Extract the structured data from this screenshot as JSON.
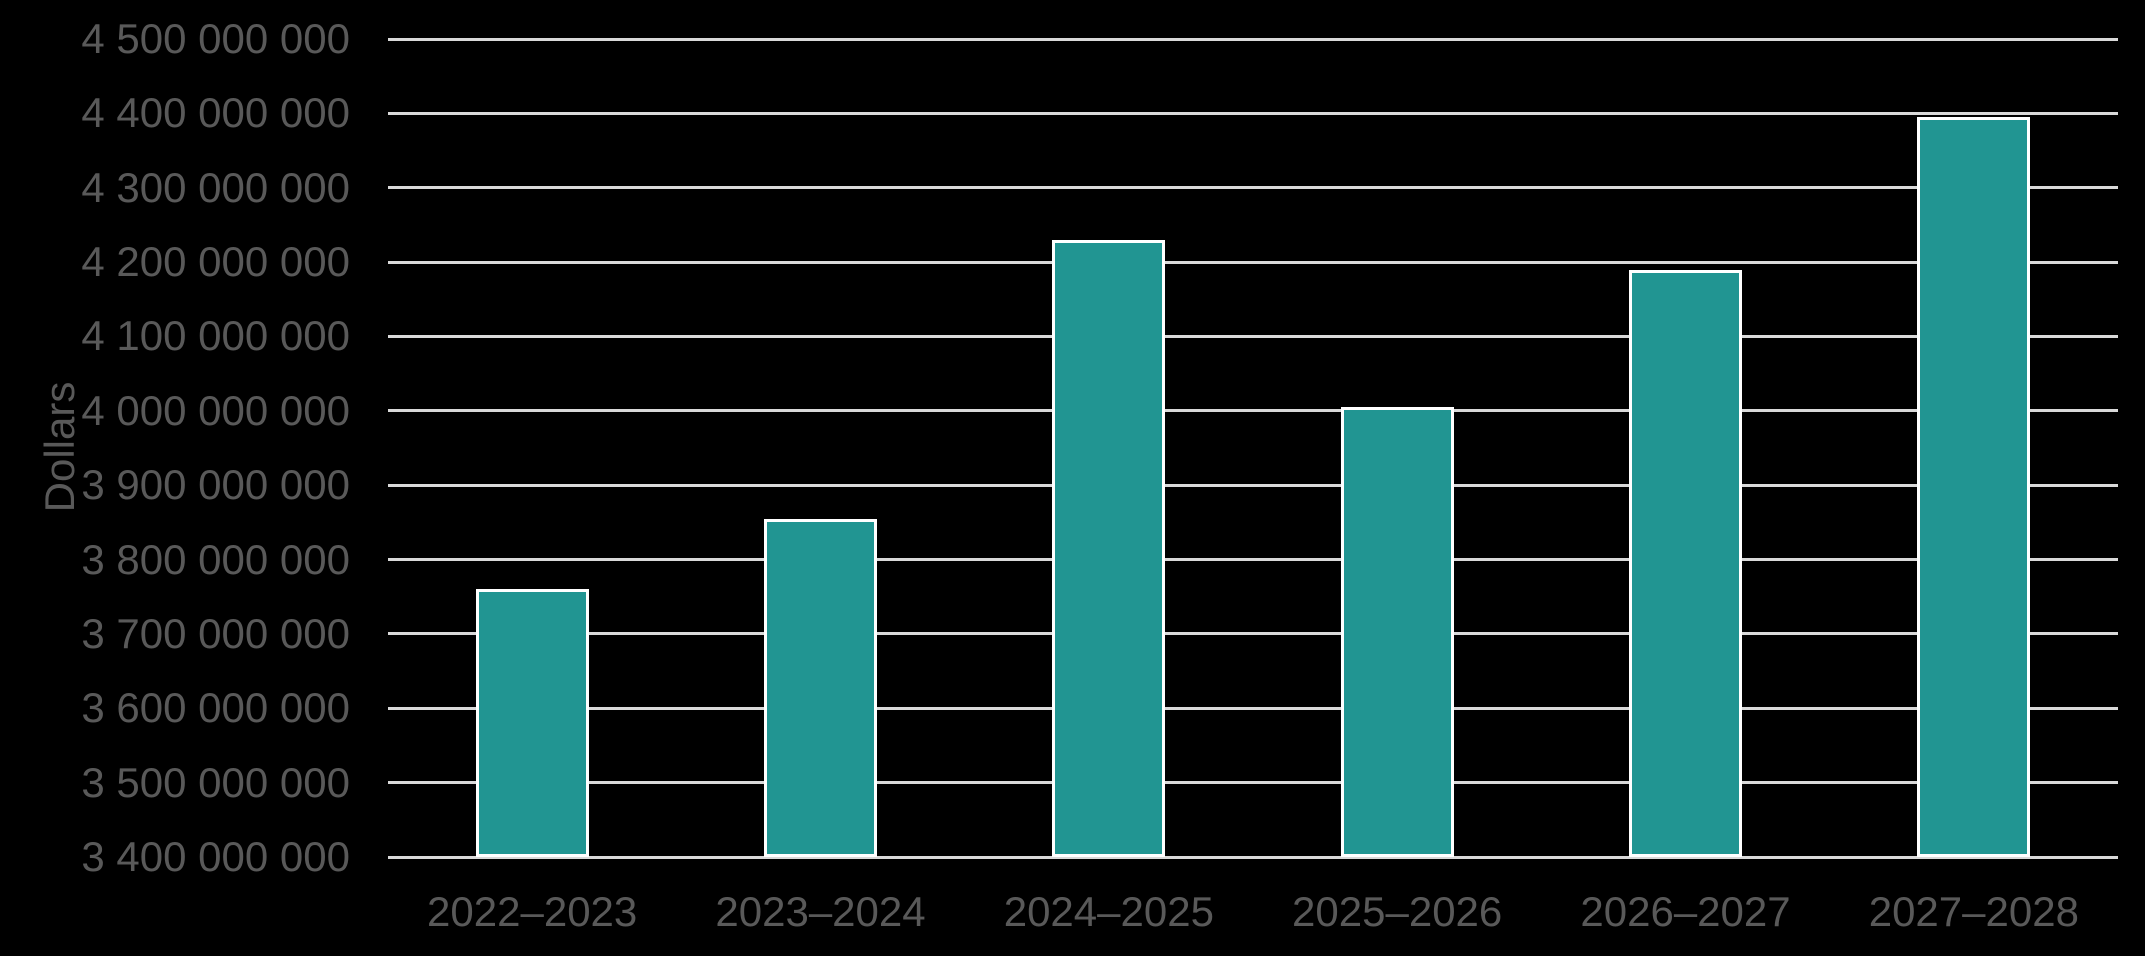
{
  "chart_data": {
    "type": "bar",
    "title": "",
    "xlabel": "",
    "ylabel": "Dollars",
    "categories": [
      "2022–2023",
      "2023–2024",
      "2024–2025",
      "2025–2026",
      "2026–2027",
      "2027–2028"
    ],
    "values": [
      3760000000,
      3855000000,
      4230000000,
      4005000000,
      4190000000,
      4395000000
    ],
    "ylim": [
      3400000000,
      4500000000
    ],
    "ytick_step": 100000000,
    "ytick_labels": [
      "4 500 000 000",
      "4 400 000 000",
      "4 300 000 000",
      "4 200 000 000",
      "4 100 000 000",
      "4 000 000 000",
      "3 900 000 000",
      "3 800 000 000",
      "3 700 000 000",
      "3 600 000 000",
      "3 500 000 000",
      "3 400 000 000"
    ],
    "grid": "horizontal",
    "legend": "none",
    "colors": {
      "bar_fill": "#219592",
      "bar_stroke": "#ffffff",
      "gridline": "#d9d9d9",
      "axis_text": "#595959",
      "background": "#000000"
    }
  }
}
